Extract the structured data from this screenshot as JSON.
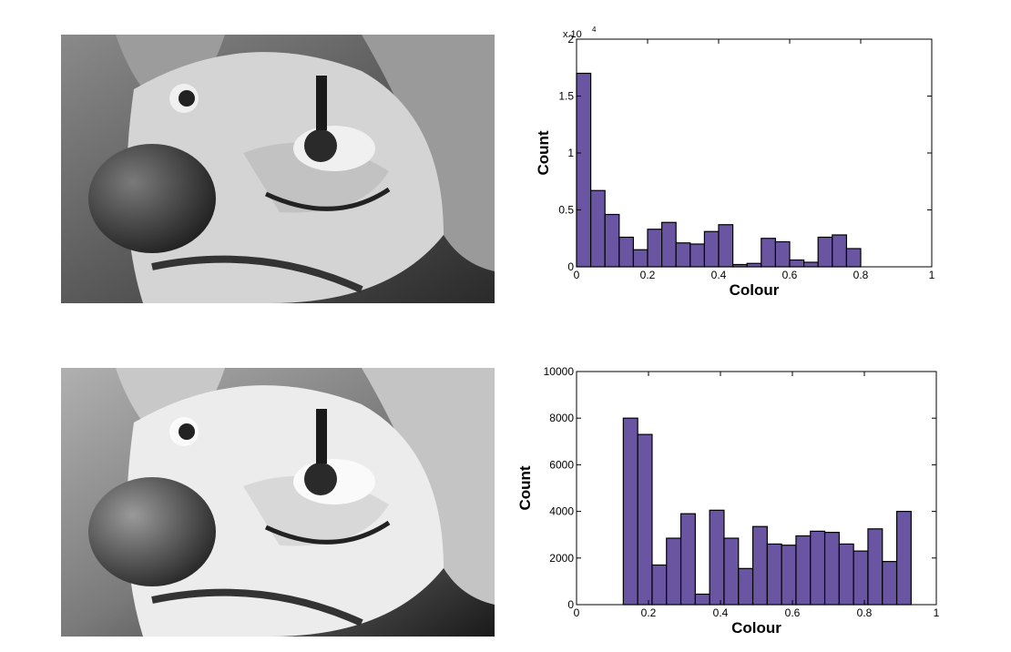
{
  "chart_data": [
    {
      "type": "bar",
      "xlabel": "Colour",
      "ylabel": "Count",
      "xlim": [
        0,
        1
      ],
      "ylim": [
        0,
        20000
      ],
      "x_ticks": [
        "0",
        "0.2",
        "0.4",
        "0.6",
        "0.8",
        "1"
      ],
      "y_ticks": [
        "0",
        "0.5",
        "1",
        "1.5",
        "2"
      ],
      "y_multiplier_base": "x 10",
      "y_multiplier_exp": "4",
      "bar_color": "#6a55a2",
      "bin_width": 0.04,
      "bin_starts": [
        0,
        0.04,
        0.08,
        0.12,
        0.16,
        0.2,
        0.24,
        0.28,
        0.32,
        0.36,
        0.4,
        0.44,
        0.48,
        0.52,
        0.56,
        0.6,
        0.64,
        0.68,
        0.72,
        0.76,
        0.8,
        0.84,
        0.88,
        0.92,
        0.96
      ],
      "values": [
        17000,
        6700,
        4600,
        2600,
        1500,
        3300,
        3900,
        2100,
        2000,
        3100,
        3700,
        200,
        300,
        2500,
        2200,
        600,
        400,
        2600,
        2800,
        1600,
        0,
        0,
        0,
        0,
        0
      ]
    },
    {
      "type": "bar",
      "xlabel": "Colour",
      "ylabel": "Count",
      "xlim": [
        0,
        1
      ],
      "ylim": [
        0,
        10000
      ],
      "x_ticks": [
        "0",
        "0.2",
        "0.4",
        "0.6",
        "0.8",
        "1"
      ],
      "y_ticks": [
        "0",
        "2000",
        "4000",
        "6000",
        "8000",
        "10000"
      ],
      "bar_color": "#6a55a2",
      "bin_width": 0.04,
      "bin_starts": [
        0.13,
        0.17,
        0.21,
        0.25,
        0.29,
        0.33,
        0.37,
        0.41,
        0.45,
        0.49,
        0.53,
        0.57,
        0.61,
        0.65,
        0.69,
        0.73,
        0.77,
        0.81,
        0.85,
        0.89,
        0.93,
        0.97
      ],
      "values": [
        8000,
        7300,
        1700,
        2850,
        3900,
        450,
        4050,
        2850,
        1550,
        3350,
        2600,
        2550,
        2950,
        3150,
        3100,
        2600,
        2300,
        3250,
        1850,
        4000,
        0,
        0
      ]
    }
  ]
}
